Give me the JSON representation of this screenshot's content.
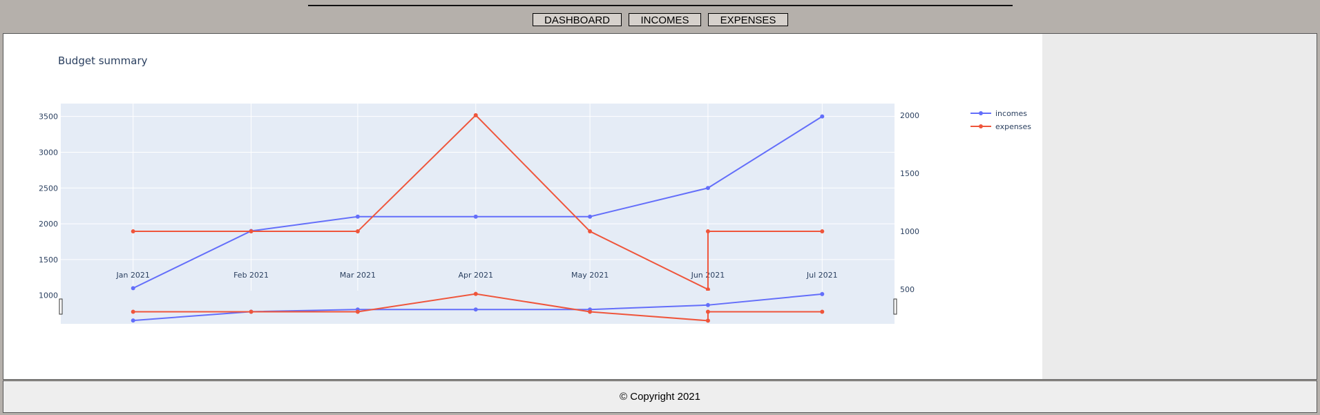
{
  "nav": {
    "buttons": [
      "DASHBOARD",
      "INCOMES",
      "EXPENSES"
    ]
  },
  "footer": {
    "text": "© Copyright 2021"
  },
  "colors": {
    "incomes": "#636efa",
    "expenses": "#ef553b",
    "plot_bg": "#e5ecf6",
    "title": "#2a3f5f"
  },
  "chart_data": {
    "type": "line",
    "title": "Budget summary",
    "x": [
      "Jan 2021",
      "Feb 2021",
      "Mar 2021",
      "Apr 2021",
      "May 2021",
      "Jun 2021",
      "Jul 2021"
    ],
    "series": [
      {
        "name": "incomes",
        "axis": "left",
        "points": [
          {
            "x": "2021-01-01",
            "y": 1100
          },
          {
            "x": "2021-02-01",
            "y": 1900
          },
          {
            "x": "2021-03-01",
            "y": 2100
          },
          {
            "x": "2021-04-01",
            "y": 2100
          },
          {
            "x": "2021-05-01",
            "y": 2100
          },
          {
            "x": "2021-06-01",
            "y": 2500
          },
          {
            "x": "2021-07-01",
            "y": 3500
          }
        ]
      },
      {
        "name": "expenses",
        "axis": "right",
        "points": [
          {
            "x": "2021-01-01",
            "y": 1000
          },
          {
            "x": "2021-02-01",
            "y": 1000
          },
          {
            "x": "2021-03-01",
            "y": 1000
          },
          {
            "x": "2021-04-01",
            "y": 2000
          },
          {
            "x": "2021-05-01",
            "y": 1000
          },
          {
            "x": "2021-06-01",
            "y": 500
          },
          {
            "x": "2021-06-01",
            "y": 1000
          },
          {
            "x": "2021-07-01",
            "y": 1000
          }
        ]
      }
    ],
    "yaxis_left": {
      "ticks": [
        1000,
        1500,
        2000,
        2500,
        3000,
        3500
      ],
      "range": [
        920,
        3680
      ]
    },
    "yaxis_right": {
      "ticks": [
        500,
        1000,
        1500,
        2000
      ],
      "range": [
        400,
        2100
      ]
    },
    "xaxis": {
      "range": [
        "2020-12-13",
        "2021-07-20"
      ]
    },
    "grid": true,
    "legend": "top-right",
    "rangeslider": true
  }
}
